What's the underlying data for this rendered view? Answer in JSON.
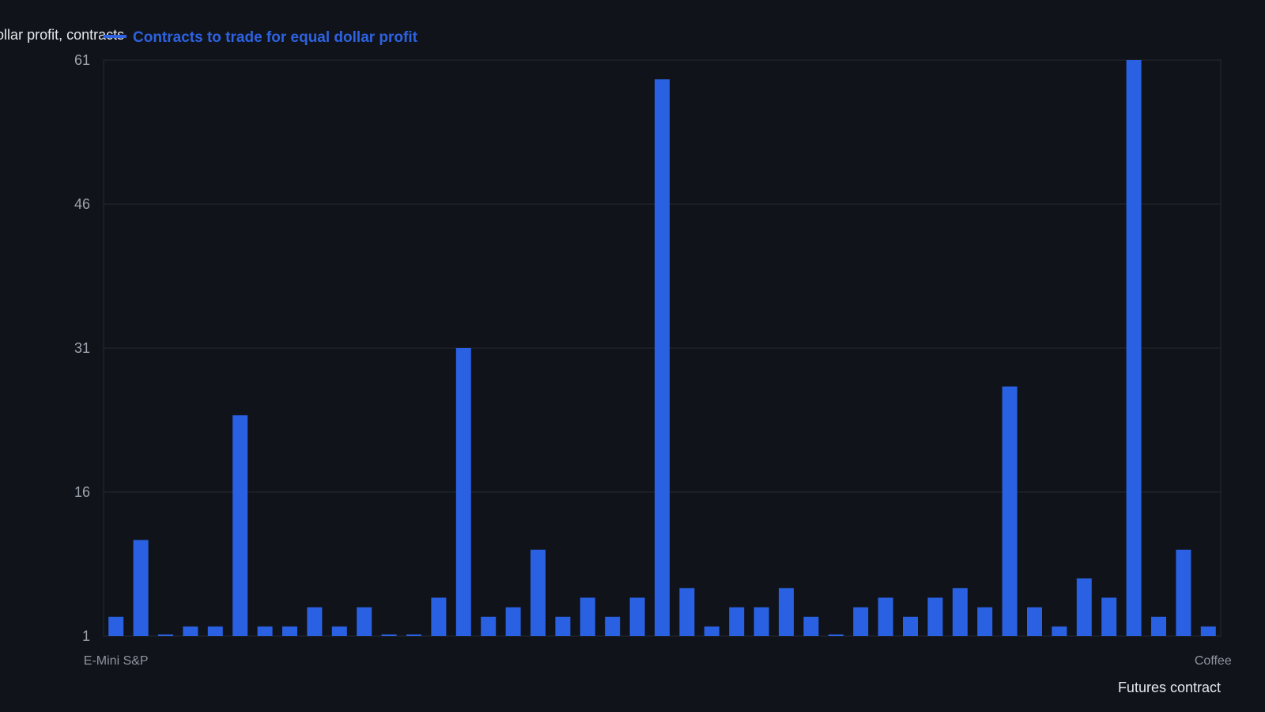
{
  "chart_data": {
    "type": "bar",
    "ylabel": "Equal dollar profit, contracts",
    "xlabel": "Futures contract",
    "legend": {
      "position": "top-left",
      "entries": [
        {
          "name": "Contracts to trade for equal dollar profit",
          "color": "#2d62e0"
        }
      ]
    },
    "ylim": [
      1,
      61
    ],
    "yticks": [
      1,
      16,
      31,
      46,
      61
    ],
    "grid": true,
    "bar_color": "#2a61e2",
    "visible_category_labels": [
      "E-Mini S&P",
      "Coffee"
    ],
    "series": [
      {
        "name": "Contracts to trade for equal dollar profit",
        "values": [
          3,
          11,
          1,
          2,
          2,
          24,
          2,
          2,
          4,
          2,
          4,
          1,
          1,
          5,
          31,
          3,
          4,
          10,
          3,
          5,
          3,
          5,
          59,
          6,
          2,
          4,
          4,
          6,
          3,
          1,
          4,
          5,
          3,
          5,
          6,
          4,
          27,
          4,
          2,
          7,
          5,
          61,
          3,
          10,
          2
        ]
      }
    ]
  }
}
